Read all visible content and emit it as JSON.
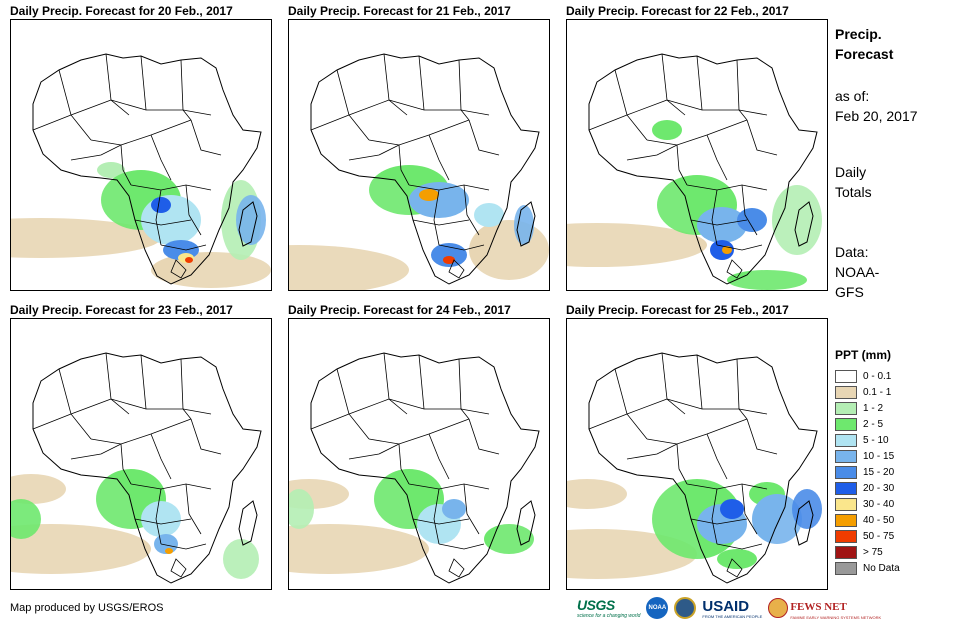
{
  "panels": [
    {
      "title": "Daily Precip. Forecast for 20 Feb., 2017"
    },
    {
      "title": "Daily Precip. Forecast for 21 Feb., 2017"
    },
    {
      "title": "Daily Precip. Forecast for 22 Feb., 2017"
    },
    {
      "title": "Daily Precip. Forecast for 23 Feb., 2017"
    },
    {
      "title": "Daily Precip. Forecast for 24 Feb., 2017"
    },
    {
      "title": "Daily Precip. Forecast for 25 Feb., 2017"
    }
  ],
  "side": {
    "heading_line1": "Precip.",
    "heading_line2": "Forecast",
    "asof_label": "as of:",
    "asof_date": "Feb 20, 2017",
    "totals_line1": "Daily",
    "totals_line2": "Totals",
    "data_label": "Data:",
    "data_source_line1": "NOAA-",
    "data_source_line2": "GFS"
  },
  "legend": {
    "title": "PPT (mm)",
    "items": [
      {
        "label": "0 - 0.1",
        "color": "#ffffff"
      },
      {
        "label": "0.1 - 1",
        "color": "#e8d6b4"
      },
      {
        "label": "1 - 2",
        "color": "#b4eeb4"
      },
      {
        "label": "2 - 5",
        "color": "#6ee86e"
      },
      {
        "label": "5 - 10",
        "color": "#b0e4f2"
      },
      {
        "label": "10 - 15",
        "color": "#78b4ec"
      },
      {
        "label": "15 - 20",
        "color": "#4a8ce8"
      },
      {
        "label": "20 - 30",
        "color": "#1f5ee8"
      },
      {
        "label": "30 - 40",
        "color": "#fae68c"
      },
      {
        "label": "40 - 50",
        "color": "#f59e00"
      },
      {
        "label": "50 - 75",
        "color": "#f03c00"
      },
      {
        "label": "> 75",
        "color": "#a01414"
      },
      {
        "label": "No Data",
        "color": "#999999"
      }
    ]
  },
  "credit": "Map produced by USGS/EROS",
  "logos": {
    "usgs": "USGS",
    "usgs_tagline": "science for a changing world",
    "noaa": "NOAA",
    "usaid": "USAID",
    "usaid_tagline": "FROM THE AMERICAN PEOPLE",
    "fews": "FEWS NET",
    "fews_tagline": "FAMINE EARLY WARNING SYSTEMS NETWORK"
  }
}
